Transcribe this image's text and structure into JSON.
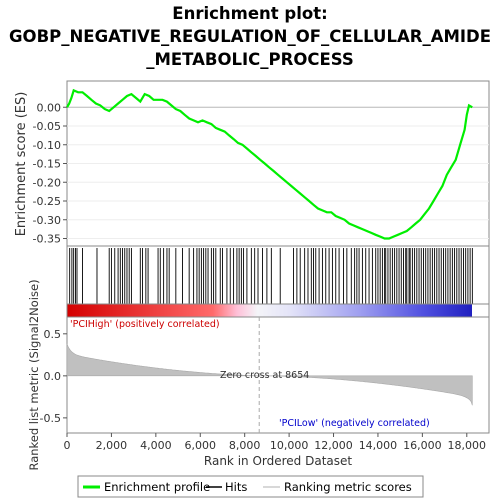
{
  "chart_data": {
    "type": "line",
    "title": [
      "Enrichment plot:",
      "GOBP_NEGATIVE_REGULATION_OF_CELLULAR_AMIDE",
      "_METABOLIC_PROCESS"
    ],
    "xlabel": "Rank in Ordered Dataset",
    "es_ylabel": "Enrichment score (ES)",
    "metric_ylabel": "Ranked list metric (Signal2Noise)",
    "xlim": [
      0,
      19000
    ],
    "es_ylim": [
      -0.37,
      0.07
    ],
    "metric_ylim": [
      -0.68,
      0.7
    ],
    "x_ticks": [
      0,
      2000,
      4000,
      6000,
      8000,
      10000,
      12000,
      14000,
      16000,
      18000
    ],
    "x_tick_labels": [
      "0",
      "2,000",
      "4,000",
      "6,000",
      "8,000",
      "10,000",
      "12,000",
      "14,000",
      "16,000",
      "18,000"
    ],
    "es_ticks": [
      0.0,
      -0.05,
      -0.1,
      -0.15,
      -0.2,
      -0.25,
      -0.3,
      -0.35
    ],
    "es_tick_labels": [
      "0.00",
      "-0.05",
      "-0.10",
      "-0.15",
      "-0.20",
      "-0.25",
      "-0.30",
      "-0.35"
    ],
    "metric_ticks": [
      0.5,
      0.0,
      -0.5
    ],
    "metric_tick_labels": [
      "0.5",
      "0.0",
      "-0.5"
    ],
    "enrichment_profile": {
      "x": [
        0,
        100,
        200,
        300,
        500,
        700,
        900,
        1100,
        1300,
        1500,
        1700,
        1900,
        2100,
        2300,
        2500,
        2700,
        2900,
        3100,
        3300,
        3500,
        3700,
        3900,
        4100,
        4300,
        4500,
        4700,
        4900,
        5100,
        5300,
        5500,
        5700,
        5900,
        6100,
        6300,
        6500,
        6700,
        6900,
        7100,
        7300,
        7500,
        7700,
        7900,
        8100,
        8300,
        8500,
        8700,
        8900,
        9100,
        9300,
        9500,
        9700,
        9900,
        10100,
        10300,
        10500,
        10700,
        10900,
        11100,
        11300,
        11500,
        11700,
        11900,
        12100,
        12300,
        12500,
        12700,
        12900,
        13100,
        13300,
        13500,
        13700,
        13900,
        14100,
        14300,
        14500,
        14700,
        14900,
        15100,
        15300,
        15500,
        15700,
        15900,
        16100,
        16300,
        16500,
        16700,
        16900,
        17100,
        17300,
        17500,
        17700,
        17900,
        18000,
        18100,
        18250
      ],
      "y": [
        0.0,
        0.01,
        0.025,
        0.045,
        0.04,
        0.04,
        0.03,
        0.02,
        0.01,
        0.005,
        -0.005,
        -0.01,
        0.0,
        0.01,
        0.02,
        0.03,
        0.035,
        0.025,
        0.015,
        0.035,
        0.03,
        0.02,
        0.02,
        0.02,
        0.015,
        0.005,
        -0.005,
        -0.01,
        -0.02,
        -0.03,
        -0.035,
        -0.04,
        -0.035,
        -0.04,
        -0.045,
        -0.055,
        -0.06,
        -0.065,
        -0.075,
        -0.085,
        -0.095,
        -0.1,
        -0.11,
        -0.12,
        -0.13,
        -0.14,
        -0.15,
        -0.16,
        -0.17,
        -0.18,
        -0.19,
        -0.2,
        -0.21,
        -0.22,
        -0.23,
        -0.24,
        -0.25,
        -0.26,
        -0.27,
        -0.275,
        -0.28,
        -0.28,
        -0.29,
        -0.295,
        -0.3,
        -0.31,
        -0.315,
        -0.32,
        -0.325,
        -0.33,
        -0.335,
        -0.34,
        -0.345,
        -0.35,
        -0.35,
        -0.345,
        -0.34,
        -0.335,
        -0.33,
        -0.32,
        -0.31,
        -0.3,
        -0.285,
        -0.27,
        -0.25,
        -0.23,
        -0.21,
        -0.18,
        -0.16,
        -0.14,
        -0.1,
        -0.06,
        -0.02,
        0.005,
        0.0
      ]
    },
    "hits": [
      120,
      220,
      300,
      380,
      450,
      700,
      1350,
      1900,
      2000,
      2150,
      2300,
      2400,
      2500,
      2600,
      2700,
      2800,
      2900,
      3300,
      3400,
      3550,
      3650,
      4100,
      4200,
      4350,
      4500,
      4600,
      4900,
      5200,
      5500,
      5700,
      5850,
      5950,
      6050,
      6150,
      6250,
      6350,
      6500,
      6600,
      6700,
      6900,
      7000,
      7200,
      7350,
      7500,
      7650,
      7750,
      7850,
      7950,
      8100,
      8300,
      8450,
      8600,
      8800,
      9000,
      9200,
      9600,
      10200,
      10350,
      10500,
      10700,
      10850,
      11000,
      11100,
      11200,
      11350,
      11500,
      11650,
      11800,
      11950,
      12100,
      12250,
      12450,
      12600,
      12800,
      12950,
      13050,
      13150,
      13300,
      13450,
      13600,
      13750,
      13900,
      14000,
      14100,
      14200,
      14300,
      14350,
      14450,
      14550,
      14650,
      14750,
      14850,
      14950,
      15050,
      15150,
      15250,
      15300,
      15400,
      15450,
      15550,
      15650,
      15750,
      15850,
      15950,
      16050,
      16150,
      16250,
      16350,
      16450,
      16550,
      16650,
      16750,
      16850,
      16950,
      17050,
      17150,
      17250,
      17350,
      17450,
      17550,
      17650,
      17750,
      17850,
      17950,
      18050,
      18150,
      18250
    ],
    "zero_cross": 8654,
    "total_rank": 18250,
    "labels": {
      "positive": "'PCIHigh' (positively correlated)",
      "negative": "'PCILow' (negatively correlated)",
      "zero_cross": "Zero cross at 8654"
    },
    "legend": {
      "placement": "bottom",
      "items": [
        "Enrichment profile",
        "Hits",
        "Ranking metric scores"
      ]
    },
    "colors": {
      "profile": "#00ee00",
      "hits": "#000000",
      "metric_fill": "#c0c0c0",
      "positive_label": "#cc0000",
      "negative_label": "#0000cc"
    }
  }
}
